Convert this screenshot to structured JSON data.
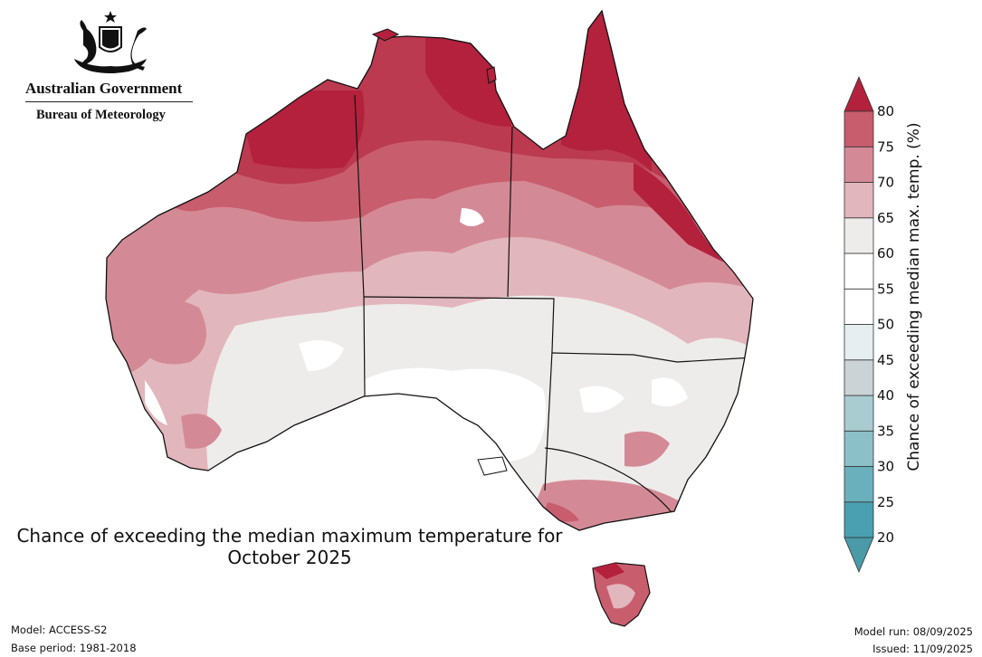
{
  "header": {
    "government": "Australian Government",
    "agency": "Bureau of Meteorology"
  },
  "map": {
    "title_line1": "Chance of exceeding the median maximum temperature for",
    "title_line2": "October 2025",
    "region": "Australia"
  },
  "colorbar": {
    "label": "Chance of exceeding median max. temp. (%)",
    "ticks": [
      "20",
      "25",
      "30",
      "35",
      "40",
      "45",
      "50",
      "55",
      "60",
      "65",
      "70",
      "75",
      "80"
    ],
    "colors": [
      "#4aa0b0",
      "#6ab0bc",
      "#8cc0c8",
      "#a9ccd1",
      "#ccd3d6",
      "#e7eef1",
      "#ffffff",
      "#ffffff",
      "#eeeceb",
      "#e2b6bd",
      "#d48a96",
      "#c85d6e",
      "#bb3a50"
    ],
    "extend_low_color": "#4a9aa8",
    "extend_high_color": "#b3213d"
  },
  "footer": {
    "model": "Model: ACCESS-S2",
    "base_period": "Base period: 1981-2018",
    "model_run": "Model run: 08/09/2025",
    "issued": "Issued: 11/09/2025"
  }
}
